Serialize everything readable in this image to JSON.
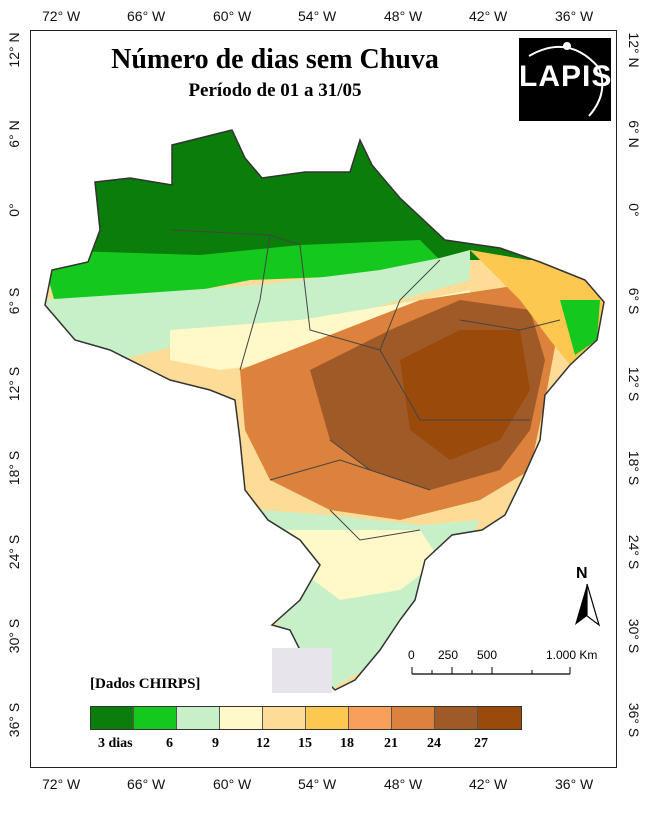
{
  "map": {
    "title": "Número de dias sem Chuva",
    "subtitle": "Período de 01 a 31/05",
    "logo_text": "LAPIS",
    "source_note": "[Dados CHIRPS]",
    "north_label": "N"
  },
  "axes": {
    "longitudes": [
      "72° W",
      "66° W",
      "60° W",
      "54° W",
      "48° W",
      "42° W",
      "36° W"
    ],
    "latitudes": [
      "12° N",
      "6° N",
      "0°",
      "6° S",
      "12° S",
      "18° S",
      "24° S",
      "30° S",
      "36° S"
    ]
  },
  "scale_bar": {
    "labels": [
      "0",
      "250",
      "500",
      "1.000 Km"
    ]
  },
  "legend": {
    "colors": [
      "#0a7d0a",
      "#14c81e",
      "#c8f0c8",
      "#fff8c8",
      "#fcdc96",
      "#fcc850",
      "#f8a05a",
      "#dc823c",
      "#a05a28",
      "#9a4a0a"
    ],
    "labels": [
      "3 dias",
      "6",
      "9",
      "12",
      "15",
      "18",
      "21",
      "24",
      "27"
    ]
  }
}
